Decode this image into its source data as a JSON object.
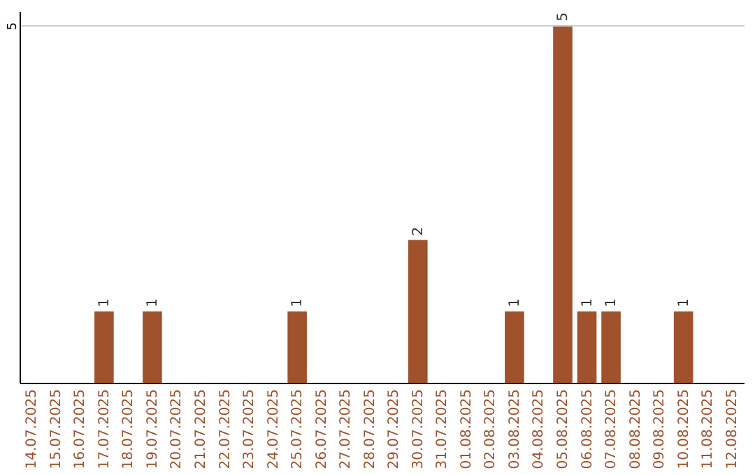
{
  "chart_data": {
    "type": "bar",
    "categories": [
      "14.07.2025",
      "15.07.2025",
      "16.07.2025",
      "17.07.2025",
      "18.07.2025",
      "19.07.2025",
      "20.07.2025",
      "21.07.2025",
      "22.07.2025",
      "23.07.2025",
      "24.07.2025",
      "25.07.2025",
      "26.07.2025",
      "27.07.2025",
      "28.07.2025",
      "29.07.2025",
      "30.07.2025",
      "31.07.2025",
      "01.08.2025",
      "02.08.2025",
      "03.08.2025",
      "04.08.2025",
      "05.08.2025",
      "06.08.2025",
      "07.08.2025",
      "08.08.2025",
      "09.08.2025",
      "10.08.2025",
      "11.08.2025",
      "12.08.2025"
    ],
    "values": [
      0,
      0,
      0,
      1,
      0,
      1,
      0,
      0,
      0,
      0,
      0,
      1,
      0,
      0,
      0,
      0,
      2,
      0,
      0,
      0,
      1,
      0,
      5,
      1,
      1,
      0,
      0,
      1,
      0,
      0
    ],
    "value_labels": [
      null,
      null,
      null,
      "1",
      null,
      "1",
      null,
      null,
      null,
      null,
      null,
      "1",
      null,
      null,
      null,
      null,
      "2",
      null,
      null,
      null,
      "1",
      null,
      "5",
      "1",
      "1",
      null,
      null,
      "1",
      null,
      null
    ],
    "color": "#a0522d",
    "ylim": [
      0,
      5.2
    ],
    "yticks": [
      5
    ],
    "grid": "y"
  }
}
